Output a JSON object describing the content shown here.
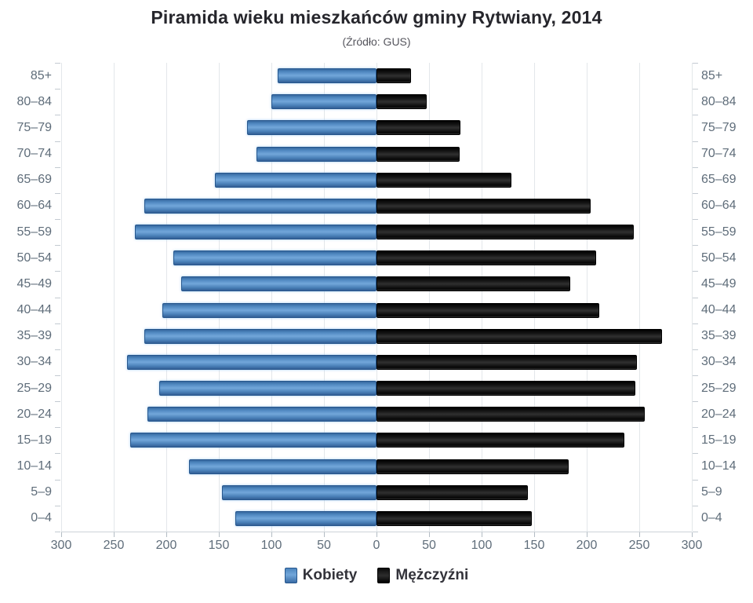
{
  "chart_data": {
    "type": "bar",
    "subtype": "population-pyramid",
    "title": "Piramida wieku mieszkańców gminy Rytwiany, 2014",
    "subtitle": "(Źródło: GUS)",
    "categories_top_to_bottom": [
      "85+",
      "80–84",
      "75–79",
      "70–74",
      "65–69",
      "60–64",
      "55–59",
      "50–54",
      "45–49",
      "40–44",
      "35–39",
      "30–34",
      "25–29",
      "20–24",
      "15–19",
      "10–14",
      "5–9",
      "0–4"
    ],
    "series": [
      {
        "name": "Kobiety",
        "side": "left",
        "color": "#4d84bd",
        "values": [
          94,
          100,
          123,
          114,
          154,
          221,
          230,
          193,
          186,
          204,
          221,
          237,
          207,
          218,
          234,
          178,
          147,
          134
        ]
      },
      {
        "name": "Mężczyźni",
        "side": "right",
        "color": "#161616",
        "values": [
          33,
          48,
          80,
          79,
          128,
          204,
          245,
          209,
          184,
          212,
          272,
          248,
          246,
          255,
          236,
          183,
          144,
          148
        ]
      }
    ],
    "x_axis": {
      "min": 0,
      "max": 300,
      "tick_step": 50,
      "tick_labels": [
        "300",
        "250",
        "200",
        "150",
        "100",
        "50",
        "0",
        "50",
        "100",
        "150",
        "200",
        "250",
        "300"
      ]
    },
    "y_axis": {
      "labels_on_both_sides": true
    },
    "legend_position": "bottom",
    "grid": true,
    "colors": {
      "female_bar": "#4d84bd",
      "male_bar": "#161616",
      "gridline": "#e3e7ea",
      "axis_text": "#5f6d7a",
      "title_text": "#26262c"
    }
  }
}
